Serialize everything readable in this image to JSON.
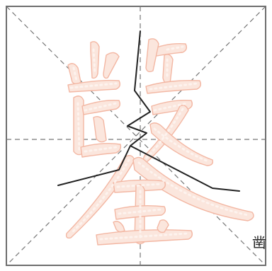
{
  "caption": {
    "glyph": "凿"
  },
  "colors": {
    "grid_line": "#777777",
    "frame": "#6e6e6e",
    "character_fill": "#fbe6dd",
    "character_outline": "#f3b7a3",
    "ink_stroke": "#222222"
  },
  "icons": [
    "calligraphy-practice-grid",
    "traced-character-glyph",
    "handwritten-ink-stroke"
  ]
}
